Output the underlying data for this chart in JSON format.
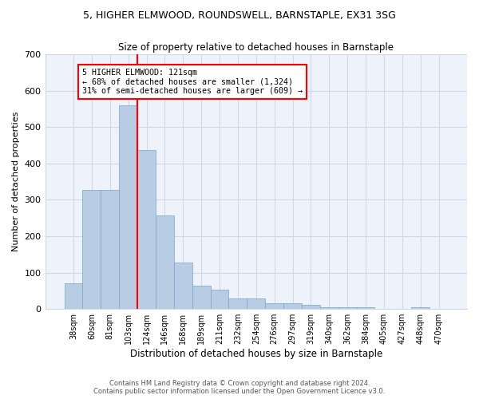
{
  "title_line1": "5, HIGHER ELMWOOD, ROUNDSWELL, BARNSTAPLE, EX31 3SG",
  "title_line2": "Size of property relative to detached houses in Barnstaple",
  "xlabel": "Distribution of detached houses by size in Barnstaple",
  "ylabel": "Number of detached properties",
  "categories": [
    "38sqm",
    "60sqm",
    "81sqm",
    "103sqm",
    "124sqm",
    "146sqm",
    "168sqm",
    "189sqm",
    "211sqm",
    "232sqm",
    "254sqm",
    "276sqm",
    "297sqm",
    "319sqm",
    "340sqm",
    "362sqm",
    "384sqm",
    "405sqm",
    "427sqm",
    "448sqm",
    "470sqm"
  ],
  "values": [
    70,
    328,
    328,
    560,
    438,
    257,
    128,
    63,
    52,
    28,
    28,
    16,
    16,
    11,
    5,
    5,
    5,
    0,
    0,
    5,
    0
  ],
  "bar_color": "#b8cce4",
  "bar_edgecolor": "#7aa5cc",
  "grid_color": "#d0d8e8",
  "vline_color": "red",
  "vline_x_index": 4,
  "annotation_text": "5 HIGHER ELMWOOD: 121sqm\n← 68% of detached houses are smaller (1,324)\n31% of semi-detached houses are larger (609) →",
  "annotation_box_color": "red",
  "ylim": [
    0,
    700
  ],
  "yticks": [
    0,
    100,
    200,
    300,
    400,
    500,
    600,
    700
  ],
  "footer_line1": "Contains HM Land Registry data © Crown copyright and database right 2024.",
  "footer_line2": "Contains public sector information licensed under the Open Government Licence v3.0.",
  "bg_color": "#eef2fa"
}
